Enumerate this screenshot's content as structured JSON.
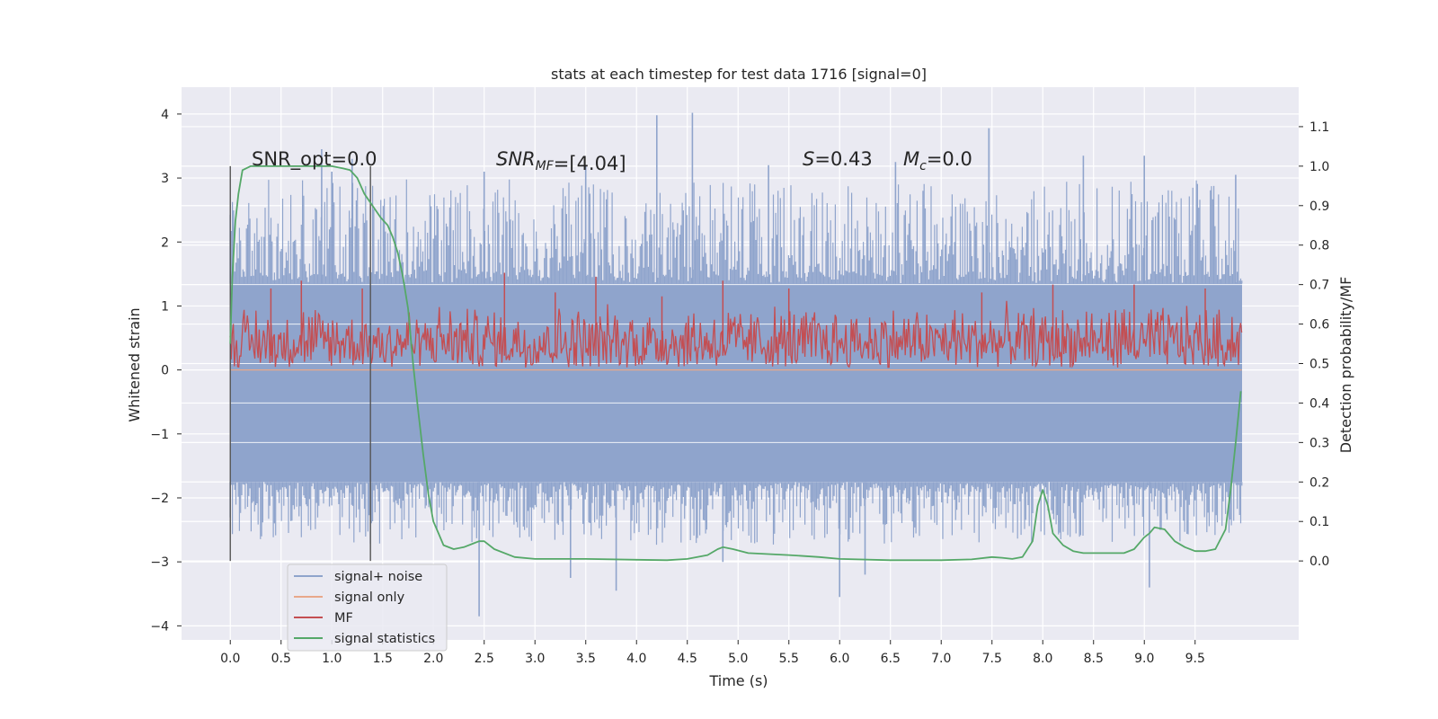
{
  "chart_data": {
    "type": "line",
    "title": "stats at each timestep for test data 1716 [signal=0]",
    "xlabel": "Time (s)",
    "ylabel": "Whitened strain",
    "y2label": "Detection probability/MF",
    "xlim": [
      -0.48,
      10.52
    ],
    "ylim": [
      -4.22,
      4.42
    ],
    "y2lim": [
      -0.2,
      1.2
    ],
    "x_ticks": [
      0.0,
      0.5,
      1.0,
      1.5,
      2.0,
      2.5,
      3.0,
      3.5,
      4.0,
      4.5,
      5.0,
      5.5,
      6.0,
      6.5,
      7.0,
      7.5,
      8.0,
      8.5,
      9.0,
      9.5
    ],
    "x_tick_labels": [
      "0.0",
      "0.5",
      "1.0",
      "1.5",
      "2.0",
      "2.5",
      "3.0",
      "3.5",
      "4.0",
      "4.5",
      "5.0",
      "5.5",
      "6.0",
      "6.5",
      "7.0",
      "7.5",
      "8.0",
      "8.5",
      "9.0",
      "9.5"
    ],
    "y_ticks": [
      -4,
      -3,
      -2,
      -1,
      0,
      1,
      2,
      3,
      4
    ],
    "y_tick_labels": [
      "−4",
      "−3",
      "−2",
      "−1",
      "0",
      "1",
      "2",
      "3",
      "4"
    ],
    "y2_ticks": [
      0.0,
      0.1,
      0.2,
      0.3,
      0.4,
      0.5,
      0.6,
      0.7,
      0.8,
      0.9,
      1.0,
      1.1
    ],
    "y2_tick_labels": [
      "0.0",
      "0.1",
      "0.2",
      "0.3",
      "0.4",
      "0.5",
      "0.6",
      "0.7",
      "0.8",
      "0.9",
      "1.0",
      "1.1"
    ],
    "grid": true,
    "legend_position": "lower-left",
    "annotations": {
      "snr_opt": "SNR_opt=0.0",
      "snr_mf_base": "SNR",
      "snr_mf_sub": "MF",
      "snr_mf_value": "=[4.04]",
      "s_var": "S",
      "s_value": "=0.43",
      "mc_base": "M",
      "mc_sub": "c",
      "mc_value": "=0.0"
    },
    "vertical_markers": [
      0.0,
      1.38
    ],
    "series": [
      {
        "name": "signal+ noise",
        "color": "#8fa4cc",
        "axis": "left",
        "x_range": [
          0.0,
          9.96
        ],
        "envelope": {
          "core_low": -1.75,
          "core_high": 1.35,
          "spike_peak_x": [
            0.9,
            1.0,
            1.2,
            2.5,
            3.5,
            4.2,
            4.55,
            5.3,
            6.55,
            7.47,
            8.4,
            9.0,
            9.9,
            2.45,
            3.35,
            3.8,
            4.85,
            6.0,
            6.25,
            9.05
          ],
          "spike_peak_y": [
            3.45,
            3.1,
            3.3,
            3.1,
            3.2,
            3.98,
            4.02,
            3.2,
            3.25,
            3.78,
            3.35,
            3.35,
            3.05,
            -3.85,
            -3.25,
            -3.45,
            -3.0,
            -3.55,
            -3.2,
            -3.4
          ]
        }
      },
      {
        "name": "signal only",
        "color": "#e8a88a",
        "axis": "left",
        "x": [
          0.0,
          9.96
        ],
        "y": [
          0.0,
          0.0
        ]
      },
      {
        "name": "MF",
        "color": "#c44e52",
        "axis": "right",
        "x_range": [
          0.0,
          9.96
        ],
        "baseline": 0.52,
        "band_low": 0.49,
        "band_high": 0.66,
        "peaks_x": [
          0.4,
          0.7,
          1.3,
          2.7,
          3.2,
          3.6,
          4.25,
          4.85,
          5.5,
          7.4,
          8.1,
          8.9,
          9.6
        ],
        "peaks_y": [
          0.69,
          0.71,
          0.69,
          0.73,
          0.68,
          0.72,
          0.67,
          0.71,
          0.69,
          0.68,
          0.7,
          0.7,
          0.69
        ]
      },
      {
        "name": "signal statistics",
        "color": "#55a868",
        "axis": "right",
        "x": [
          0.0,
          0.02,
          0.05,
          0.08,
          0.12,
          0.2,
          0.3,
          0.5,
          0.7,
          0.9,
          1.0,
          1.1,
          1.18,
          1.25,
          1.32,
          1.4,
          1.48,
          1.55,
          1.6,
          1.65,
          1.7,
          1.75,
          1.8,
          1.85,
          1.9,
          1.95,
          2.0,
          2.05,
          2.1,
          2.2,
          2.3,
          2.4,
          2.45,
          2.5,
          2.6,
          2.8,
          3.0,
          3.5,
          4.0,
          4.3,
          4.5,
          4.7,
          4.8,
          4.85,
          4.95,
          5.1,
          5.5,
          5.8,
          6.0,
          6.5,
          7.0,
          7.3,
          7.5,
          7.6,
          7.7,
          7.8,
          7.9,
          7.95,
          8.0,
          8.05,
          8.1,
          8.2,
          8.3,
          8.4,
          8.6,
          8.8,
          8.9,
          9.0,
          9.05,
          9.1,
          9.2,
          9.3,
          9.4,
          9.5,
          9.6,
          9.7,
          9.8,
          9.85,
          9.9,
          9.95
        ],
        "y": [
          0.55,
          0.72,
          0.86,
          0.93,
          0.99,
          1.0,
          1.0,
          1.0,
          1.0,
          1.0,
          1.0,
          0.995,
          0.99,
          0.97,
          0.93,
          0.9,
          0.87,
          0.85,
          0.82,
          0.78,
          0.72,
          0.64,
          0.5,
          0.38,
          0.27,
          0.17,
          0.1,
          0.07,
          0.04,
          0.03,
          0.035,
          0.045,
          0.05,
          0.05,
          0.03,
          0.01,
          0.005,
          0.005,
          0.003,
          0.002,
          0.005,
          0.015,
          0.03,
          0.035,
          0.03,
          0.02,
          0.015,
          0.01,
          0.005,
          0.002,
          0.002,
          0.004,
          0.01,
          0.008,
          0.005,
          0.01,
          0.05,
          0.14,
          0.18,
          0.14,
          0.07,
          0.04,
          0.025,
          0.02,
          0.02,
          0.02,
          0.03,
          0.06,
          0.07,
          0.085,
          0.08,
          0.05,
          0.035,
          0.025,
          0.025,
          0.03,
          0.08,
          0.18,
          0.3,
          0.43
        ]
      }
    ]
  }
}
